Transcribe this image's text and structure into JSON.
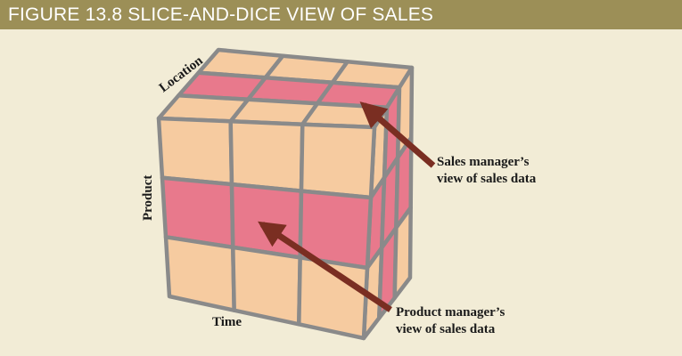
{
  "figure": {
    "title": "FIGURE 13.8  SLICE-AND-DICE VIEW OF SALES"
  },
  "cube": {
    "axis_labels": {
      "location": "Location",
      "product": "Product",
      "time": "Time"
    },
    "colors": {
      "cell": "#f6cba0",
      "highlight": "#e8798c",
      "edge": "#8a8a8a",
      "arrow": "#7a2e22",
      "background": "#f2ecd6",
      "title_bar": "#9c8f57"
    }
  },
  "callouts": {
    "sales_manager": {
      "line1": "Sales manager’s",
      "line2": "view of sales data"
    },
    "product_manager": {
      "line1": "Product manager’s",
      "line2": "view of sales data"
    }
  }
}
